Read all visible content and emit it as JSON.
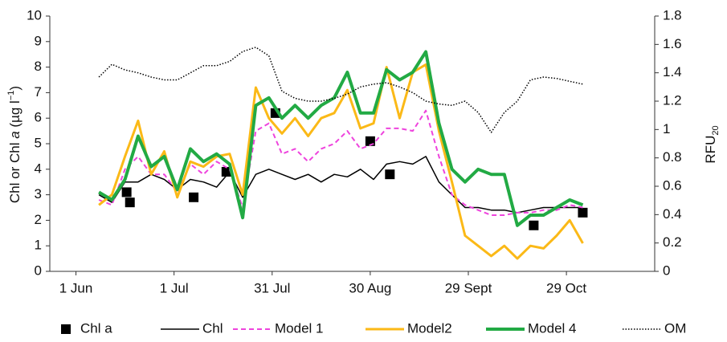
{
  "chart_data": {
    "type": "line",
    "y_label": [
      "Chl or Chl ",
      "a",
      " (µg l",
      "−1",
      ")"
    ],
    "y2_label": [
      "RFU",
      "20"
    ],
    "xlim": [
      -8,
      177
    ],
    "xticks": [
      {
        "value": 0,
        "label": "1 Jun"
      },
      {
        "value": 30,
        "label": "1 Jul"
      },
      {
        "value": 60,
        "label": "31 Jul"
      },
      {
        "value": 90,
        "label": "30 Aug"
      },
      {
        "value": 120,
        "label": "29 Sept"
      },
      {
        "value": 150,
        "label": "29 Oct"
      }
    ],
    "ylim": [
      0,
      10
    ],
    "yticks": [
      0,
      1,
      2,
      3,
      4,
      5,
      6,
      7,
      8,
      9,
      10
    ],
    "y2lim": [
      0,
      1.8
    ],
    "y2ticks": [
      0,
      0.2,
      0.4,
      0.6,
      0.8,
      1,
      1.2,
      1.4,
      1.6,
      1.8
    ],
    "grid": false,
    "legend": "bottom",
    "x": [
      7,
      11,
      15,
      19,
      23,
      27,
      31,
      35,
      39,
      43,
      47,
      51,
      55,
      59,
      63,
      67,
      71,
      75,
      79,
      83,
      87,
      91,
      95,
      99,
      103,
      107,
      111,
      115,
      119,
      123,
      127,
      131,
      135,
      139,
      143,
      147,
      151,
      155
    ],
    "series": [
      {
        "name": "Chl a",
        "style": "marker",
        "color": "#000000",
        "x": [
          15.5,
          16.5,
          36,
          46,
          61,
          90,
          96,
          140,
          155
        ],
        "values": [
          3.1,
          2.7,
          2.9,
          3.9,
          6.2,
          5.1,
          3.8,
          1.8,
          2.3
        ]
      },
      {
        "name": "Chl",
        "style": "solid",
        "width": 1.5,
        "color": "#000000",
        "values": [
          3.0,
          2.7,
          3.5,
          3.5,
          3.8,
          3.6,
          3.2,
          3.6,
          3.5,
          3.3,
          3.9,
          2.9,
          3.8,
          4.0,
          3.8,
          3.6,
          3.8,
          3.5,
          3.8,
          3.7,
          4.0,
          3.6,
          4.2,
          4.3,
          4.2,
          4.5,
          3.5,
          3.0,
          2.5,
          2.5,
          2.4,
          2.4,
          2.3,
          2.4,
          2.5,
          2.5,
          2.5,
          2.5
        ]
      },
      {
        "name": "Model 1",
        "style": "dashed",
        "width": 2,
        "color": "#ee44dd",
        "values": [
          2.8,
          2.6,
          4.0,
          4.5,
          3.8,
          3.8,
          3.1,
          4.2,
          3.8,
          4.3,
          4.0,
          2.5,
          5.5,
          5.8,
          4.6,
          4.8,
          4.3,
          4.8,
          5.0,
          5.5,
          4.8,
          5.0,
          5.6,
          5.6,
          5.5,
          6.3,
          4.5,
          3.0,
          2.6,
          2.4,
          2.2,
          2.2,
          2.3,
          2.3,
          2.4,
          2.4,
          2.6,
          2.5
        ]
      },
      {
        "name": "Model2",
        "style": "solid",
        "width": 3,
        "color": "#fbb917",
        "values": [
          2.6,
          3.0,
          4.5,
          5.9,
          3.8,
          4.7,
          2.9,
          4.3,
          4.1,
          4.5,
          4.6,
          3.0,
          7.2,
          6.0,
          5.4,
          6.0,
          5.3,
          6.0,
          6.2,
          7.1,
          5.6,
          5.8,
          8.0,
          6.0,
          7.8,
          8.1,
          5.5,
          3.5,
          1.4,
          1.0,
          0.6,
          1.0,
          0.5,
          1.0,
          0.9,
          1.4,
          2.0,
          1.1
        ]
      },
      {
        "name": "Model 4",
        "style": "solid",
        "width": 4,
        "color": "#22aa44",
        "values": [
          3.1,
          2.8,
          3.6,
          5.3,
          4.1,
          4.5,
          3.2,
          4.8,
          4.3,
          4.6,
          4.2,
          2.1,
          6.5,
          6.8,
          6.0,
          6.5,
          6.0,
          6.5,
          6.8,
          7.8,
          6.2,
          6.2,
          7.9,
          7.5,
          7.8,
          8.6,
          5.8,
          4.0,
          3.5,
          4.0,
          3.8,
          3.8,
          1.8,
          2.2,
          2.2,
          2.5,
          2.8,
          2.6
        ]
      },
      {
        "name": "OM",
        "style": "dotted",
        "width": 1.5,
        "color": "#000000",
        "axis": "y2",
        "values": [
          1.37,
          1.46,
          1.42,
          1.4,
          1.37,
          1.35,
          1.35,
          1.4,
          1.45,
          1.45,
          1.48,
          1.55,
          1.58,
          1.52,
          1.27,
          1.22,
          1.2,
          1.2,
          1.22,
          1.25,
          1.3,
          1.32,
          1.33,
          1.3,
          1.26,
          1.2,
          1.18,
          1.17,
          1.2,
          1.12,
          0.98,
          1.12,
          1.2,
          1.35,
          1.37,
          1.36,
          1.34,
          1.32
        ]
      }
    ]
  }
}
